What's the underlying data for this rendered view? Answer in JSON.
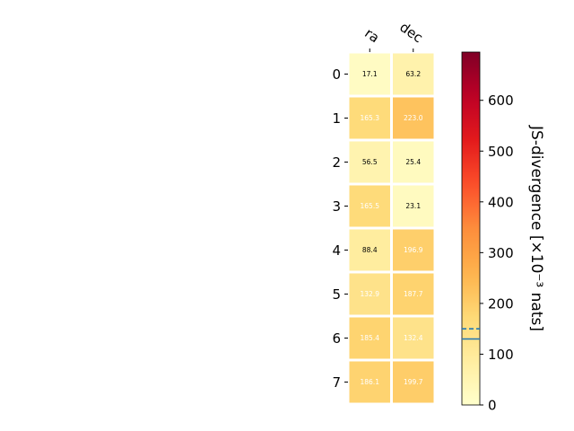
{
  "chart_data": {
    "type": "heatmap",
    "columns": [
      "ra",
      "dec"
    ],
    "rows": [
      "0",
      "1",
      "2",
      "3",
      "4",
      "5",
      "6",
      "7"
    ],
    "values": [
      [
        17.1,
        63.2
      ],
      [
        165.3,
        223.0
      ],
      [
        56.5,
        25.4
      ],
      [
        165.5,
        23.1
      ],
      [
        88.4,
        196.9
      ],
      [
        132.9,
        187.7
      ],
      [
        185.4,
        132.4
      ],
      [
        186.1,
        199.7
      ]
    ],
    "value_labels": [
      [
        "17.1",
        "63.2"
      ],
      [
        "165.3",
        "223.0"
      ],
      [
        "56.5",
        "25.4"
      ],
      [
        "165.5",
        "23.1"
      ],
      [
        "88.4",
        "196.9"
      ],
      [
        "132.9",
        "187.7"
      ],
      [
        "185.4",
        "132.4"
      ],
      [
        "186.1",
        "199.7"
      ]
    ],
    "colorbar": {
      "label": "JS-divergence [×10⁻³ nats]",
      "range": [
        0,
        695
      ],
      "ticks": [
        0,
        100,
        200,
        300,
        400,
        500,
        600
      ],
      "tick_labels": [
        "0",
        "100",
        "200",
        "300",
        "400",
        "500",
        "600"
      ],
      "colormap": "YlOrRd",
      "markers": [
        {
          "value": 150,
          "style": "dashed",
          "color": "#1f77b4"
        },
        {
          "value": 130,
          "style": "solid",
          "color": "#1f77b4"
        }
      ]
    },
    "text_color_threshold": 100
  }
}
